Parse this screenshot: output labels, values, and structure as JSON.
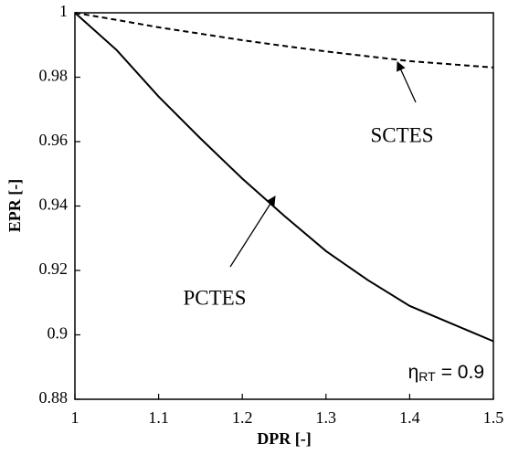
{
  "chart_data": {
    "type": "line",
    "xlabel": "DPR [-]",
    "ylabel": "EPR [-]",
    "x": [
      1.0,
      1.05,
      1.1,
      1.15,
      1.2,
      1.25,
      1.3,
      1.35,
      1.4,
      1.45,
      1.5
    ],
    "series": [
      {
        "name": "PCTES",
        "color": "#000000",
        "dashed": false,
        "values": [
          1.0,
          0.9884,
          0.974,
          0.961,
          0.9485,
          0.937,
          0.926,
          0.917,
          0.909,
          0.9035,
          0.898
        ]
      },
      {
        "name": "SCTES",
        "color": "#000000",
        "dashed": true,
        "values": [
          1.0,
          0.9978,
          0.9955,
          0.9935,
          0.9915,
          0.9897,
          0.988,
          0.9865,
          0.985,
          0.984,
          0.983
        ]
      }
    ],
    "xlim": [
      1,
      1.5
    ],
    "xticks": [
      1,
      1.1,
      1.2,
      1.3,
      1.4,
      1.5
    ],
    "ylim": [
      0.88,
      1
    ],
    "yticks": [
      0.88,
      0.9,
      0.92,
      0.94,
      0.96,
      0.98,
      1
    ],
    "note": {
      "symbol": "η",
      "subscript": "RT",
      "text": "= 0.9"
    }
  }
}
